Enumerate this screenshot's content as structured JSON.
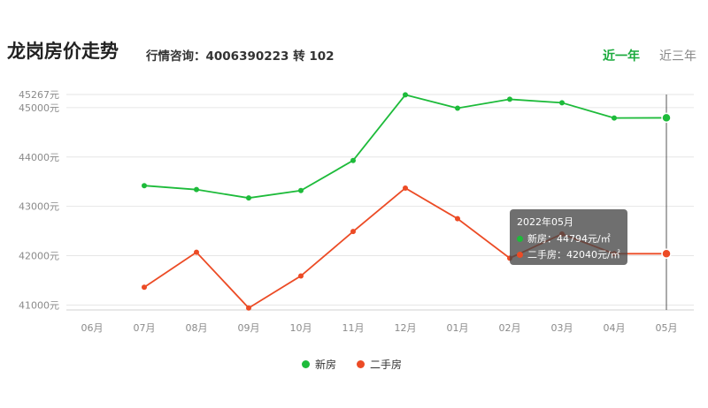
{
  "header": {
    "title": "龙岗房价走势",
    "hotline": "行情咨询：4006390223 转 102"
  },
  "tabs": [
    {
      "label": "近一年",
      "active": true
    },
    {
      "label": "近三年",
      "active": false
    }
  ],
  "colors": {
    "new": "#1dbb3a",
    "resale": "#ec4b25"
  },
  "tooltip": {
    "title": "2022年05月",
    "new_line": "新房：44794元/㎡",
    "resale_line": "二手房：42040元/㎡"
  },
  "chart_data": {
    "type": "line",
    "categories": [
      "06月",
      "07月",
      "08月",
      "09月",
      "10月",
      "11月",
      "12月",
      "01月",
      "02月",
      "03月",
      "04月",
      "05月"
    ],
    "yticks": [
      {
        "value": 41000,
        "label": "41000元"
      },
      {
        "value": 42000,
        "label": "42000元"
      },
      {
        "value": 43000,
        "label": "43000元"
      },
      {
        "value": 44000,
        "label": "44000元"
      },
      {
        "value": 45000,
        "label": "45000元"
      },
      {
        "value": 45267,
        "label": "45267元"
      }
    ],
    "ylim": [
      40900,
      45267
    ],
    "series": [
      {
        "name": "新房",
        "color": "#1dbb3a",
        "values": [
          null,
          43420,
          43340,
          43170,
          43320,
          43930,
          45260,
          44990,
          45170,
          45100,
          44790,
          44794
        ]
      },
      {
        "name": "二手房",
        "color": "#ec4b25",
        "values": [
          null,
          41360,
          42070,
          40940,
          41590,
          42490,
          43370,
          42750,
          41950,
          42440,
          42040,
          42040
        ]
      }
    ],
    "highlight_index": 11,
    "legend_position": "bottom-center"
  }
}
